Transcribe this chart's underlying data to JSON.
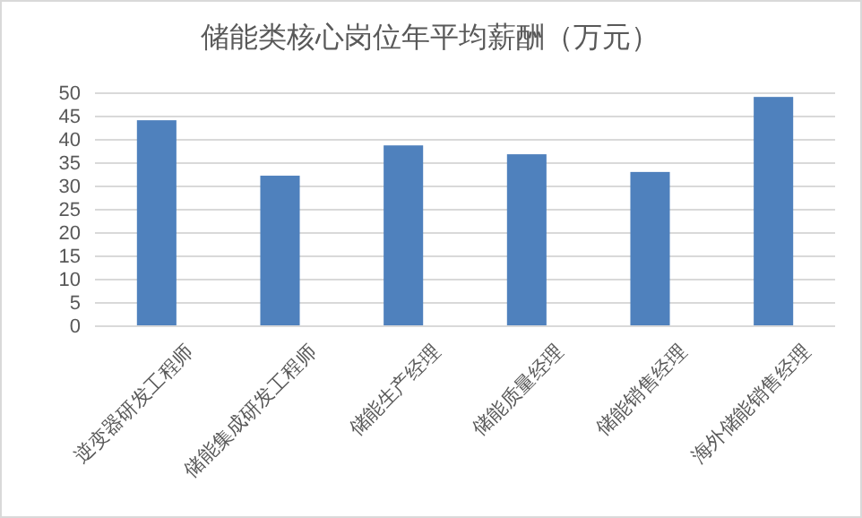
{
  "chart_data": {
    "type": "bar",
    "title": "储能类核心岗位年平均薪酬（万元）",
    "categories": [
      "逆变器研发工程师",
      "储能集成研发工程师",
      "储能生产经理",
      "储能质量经理",
      "储能销售经理",
      "海外储能销售经理"
    ],
    "values": [
      44.2,
      32.3,
      38.8,
      36.9,
      33.1,
      49.2
    ],
    "color": "#4f81bd",
    "ylim": [
      0,
      50
    ],
    "yticks": [
      0,
      5,
      10,
      15,
      20,
      25,
      30,
      35,
      40,
      45,
      50
    ],
    "grid": "y"
  }
}
